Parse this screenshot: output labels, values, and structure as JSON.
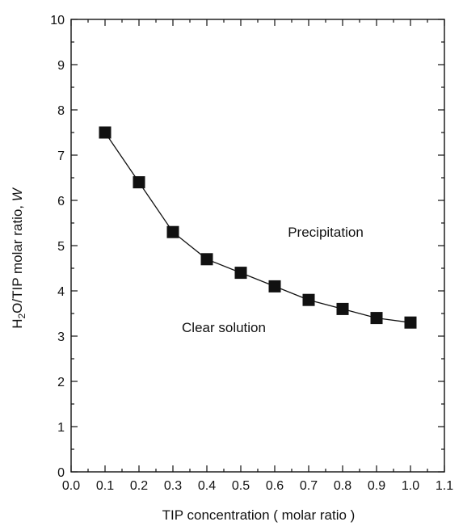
{
  "chart_data": {
    "type": "line",
    "xlabel": "TIP concentration ( molar ratio )",
    "ylabel": {
      "prefix": "H",
      "subscript": "2",
      "middle": "O/TIP molar ratio, ",
      "italic": "W"
    },
    "xlim": [
      0.0,
      1.1
    ],
    "ylim": [
      0,
      10
    ],
    "x_ticks": [
      "0.0",
      "0.1",
      "0.2",
      "0.3",
      "0.4",
      "0.5",
      "0.6",
      "0.7",
      "0.8",
      "0.9",
      "1.0",
      "1.1"
    ],
    "y_ticks": [
      "0",
      "1",
      "2",
      "3",
      "4",
      "5",
      "6",
      "7",
      "8",
      "9",
      "10"
    ],
    "grid": false,
    "legend": "none",
    "series": [
      {
        "marker": "square",
        "color": "#111111",
        "x": [
          0.1,
          0.2,
          0.3,
          0.4,
          0.5,
          0.6,
          0.7,
          0.8,
          0.9,
          1.0
        ],
        "y": [
          7.5,
          6.4,
          5.3,
          4.7,
          4.4,
          4.1,
          3.8,
          3.6,
          3.4,
          3.3
        ]
      }
    ],
    "annotations": [
      {
        "text": "Precipitation",
        "x": 0.75,
        "y": 5.3
      },
      {
        "text": "Clear solution",
        "x": 0.45,
        "y": 3.2
      }
    ]
  }
}
